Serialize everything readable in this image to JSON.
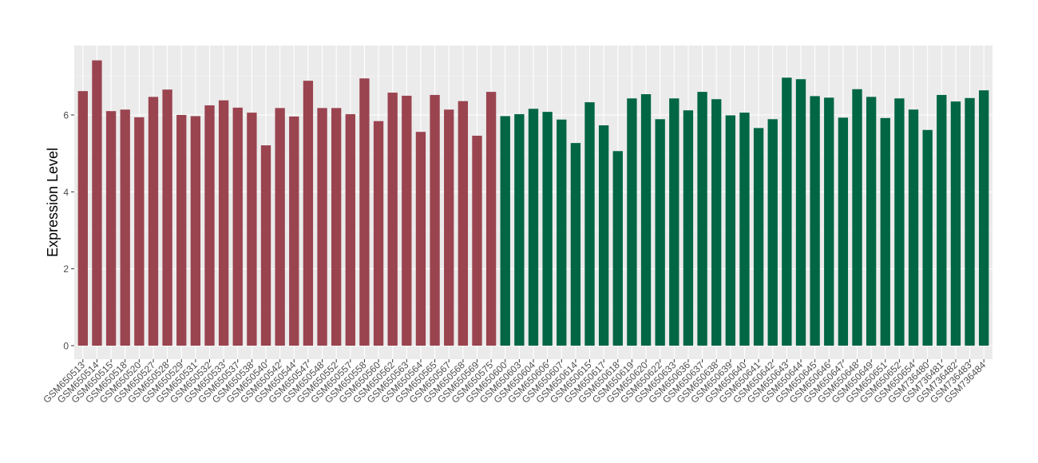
{
  "chart_data": {
    "type": "bar",
    "title": "",
    "xlabel": "",
    "ylabel": "Expression Level",
    "ylim": [
      0,
      7.6
    ],
    "yticks": [
      0,
      2,
      4,
      6
    ],
    "grid": true,
    "panel_background": "#EBEBEB",
    "categories": [
      "GSM650513",
      "GSM650514",
      "GSM650515",
      "GSM650518",
      "GSM650520",
      "GSM650527",
      "GSM650528",
      "GSM650529",
      "GSM650531",
      "GSM650532",
      "GSM650533",
      "GSM650537",
      "GSM650538",
      "GSM650540",
      "GSM650542",
      "GSM650544",
      "GSM650547",
      "GSM650548",
      "GSM650552",
      "GSM650557",
      "GSM650558",
      "GSM650560",
      "GSM650562",
      "GSM650563",
      "GSM650564",
      "GSM650565",
      "GSM650567",
      "GSM650568",
      "GSM650569",
      "GSM650575",
      "GSM650600",
      "GSM650603",
      "GSM650604",
      "GSM650606",
      "GSM650607",
      "GSM650614",
      "GSM650615",
      "GSM650617",
      "GSM650618",
      "GSM650619",
      "GSM650620",
      "GSM650622",
      "GSM650633",
      "GSM650636",
      "GSM650637",
      "GSM650638",
      "GSM650639",
      "GSM650640",
      "GSM650641",
      "GSM650642",
      "GSM650643",
      "GSM650644",
      "GSM650645",
      "GSM650646",
      "GSM650647",
      "GSM650648",
      "GSM650649",
      "GSM650651",
      "GSM650652",
      "GSM650654",
      "GSM736480",
      "GSM736481",
      "GSM736482",
      "GSM736483",
      "GSM736484"
    ],
    "values": [
      6.62,
      7.42,
      6.1,
      6.14,
      5.94,
      6.47,
      6.66,
      6.0,
      5.97,
      6.25,
      6.38,
      6.19,
      6.06,
      5.21,
      6.18,
      5.96,
      6.89,
      6.18,
      6.18,
      6.02,
      6.95,
      5.84,
      6.58,
      6.5,
      5.56,
      6.52,
      6.14,
      6.36,
      5.46,
      6.6,
      5.97,
      6.02,
      6.16,
      6.08,
      5.88,
      5.27,
      6.33,
      5.73,
      5.06,
      6.43,
      6.54,
      5.89,
      6.43,
      6.12,
      6.6,
      6.41,
      5.99,
      6.06,
      5.66,
      5.89,
      6.97,
      6.93,
      6.49,
      6.45,
      5.93,
      6.67,
      6.47,
      5.92,
      6.43,
      6.14,
      5.61,
      6.52,
      6.35,
      6.44,
      6.64
    ],
    "bar_colors": [
      "#9A4450",
      "#006644"
    ],
    "group_split_index": 30
  }
}
